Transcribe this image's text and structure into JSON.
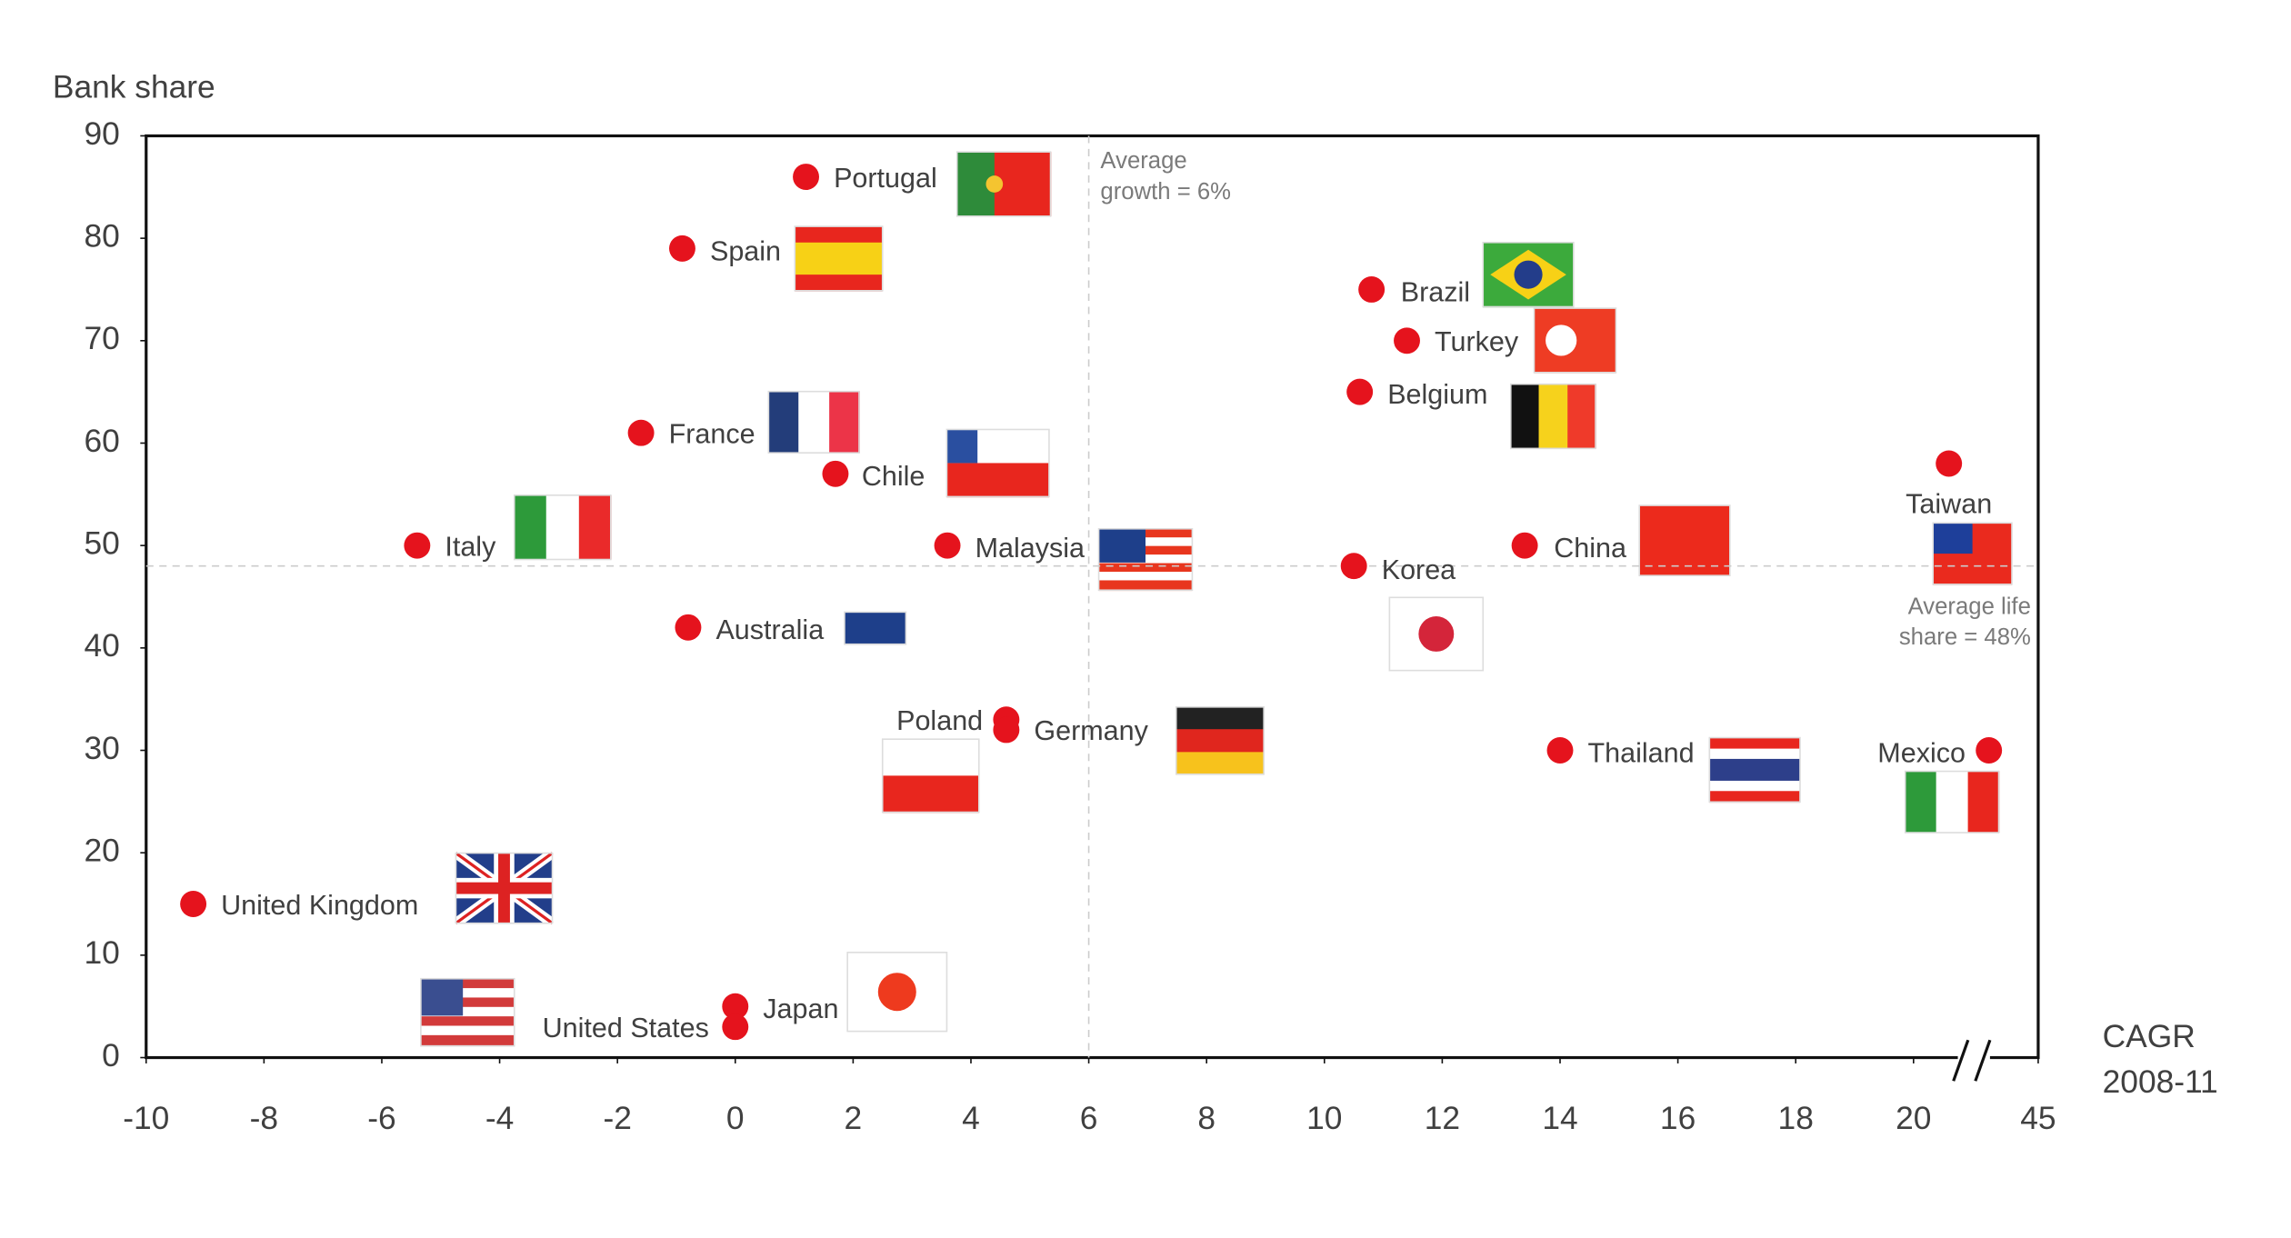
{
  "chart_data": {
    "type": "scatter",
    "y_label": "Bank share",
    "x_label": [
      "CAGR",
      "2008-11"
    ],
    "labels": [
      "Portugal",
      "Spain",
      "Brazil",
      "Turkey",
      "Belgium",
      "France",
      "Chile",
      "Taiwan",
      "Italy",
      "Malaysia",
      "China",
      "Korea",
      "Australia",
      "Poland",
      "Germany",
      "Thailand",
      "Mexico",
      "United Kingdom",
      "Japan",
      "United States"
    ],
    "x": [
      1.2,
      -0.9,
      10.8,
      11.4,
      10.6,
      -1.6,
      1.7,
      20.6,
      -5.4,
      3.6,
      13.4,
      10.5,
      -0.8,
      4.6,
      4.6,
      14.0,
      43.5,
      -9.2,
      0.0,
      0.0
    ],
    "values": [
      86,
      79,
      75,
      70,
      65,
      61,
      57,
      58,
      50,
      50,
      50,
      48,
      42,
      33,
      32,
      30,
      30,
      15,
      5,
      3
    ],
    "color": "#e5131d",
    "xlim": [
      -10,
      45
    ],
    "x_break": [
      21,
      43
    ],
    "xticks": [
      -10,
      -8,
      -6,
      -4,
      -2,
      0,
      2,
      4,
      6,
      8,
      10,
      12,
      14,
      16,
      18,
      20,
      45
    ],
    "ylim": [
      0,
      90
    ],
    "yticks": [
      0,
      10,
      20,
      30,
      40,
      50,
      60,
      70,
      80,
      90
    ],
    "grid": false,
    "average_x": 6,
    "average_x_label": [
      "Average",
      "growth = 6%"
    ],
    "average_y": 48,
    "average_y_label": [
      "Average life",
      "share = 48%"
    ]
  }
}
